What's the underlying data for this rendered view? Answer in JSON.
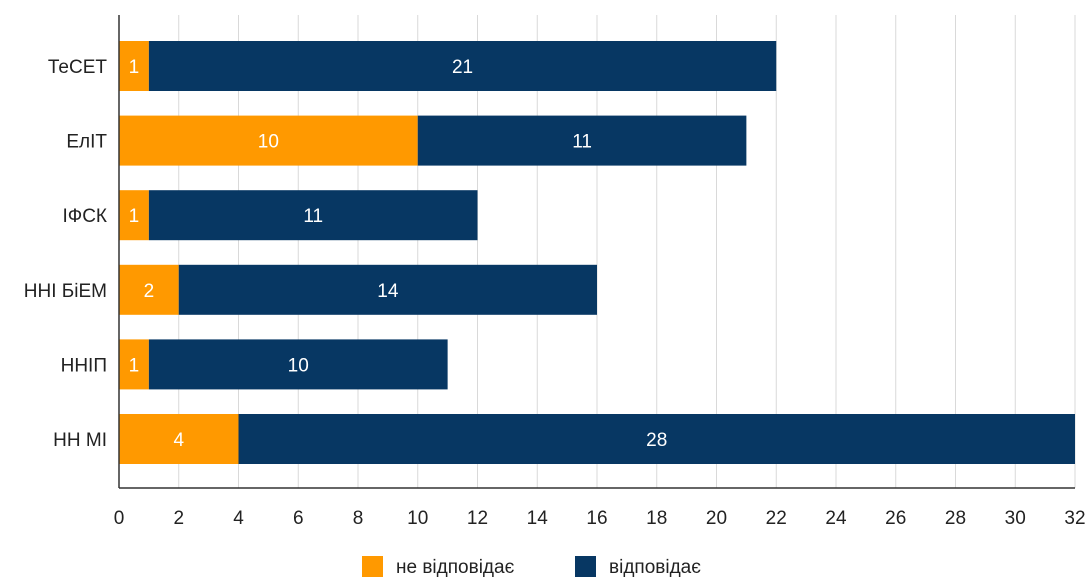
{
  "chart_data": {
    "type": "bar",
    "orientation": "horizontal",
    "stacked": true,
    "categories": [
      "ТеСЕТ",
      "ЕлІТ",
      "ІФСК",
      "ННІ БіЕМ",
      "ННІП",
      "НН МІ"
    ],
    "series": [
      {
        "name": "не відповідає",
        "color": "#ff9900",
        "values": [
          1,
          10,
          1,
          2,
          1,
          4
        ]
      },
      {
        "name": "відповідає",
        "color": "#073763",
        "values": [
          21,
          11,
          11,
          14,
          10,
          28
        ]
      }
    ],
    "title": "",
    "xlabel": "",
    "ylabel": "",
    "xlim": [
      0,
      32
    ],
    "xticks": [
      0,
      2,
      4,
      6,
      8,
      10,
      12,
      14,
      16,
      18,
      20,
      22,
      24,
      26,
      28,
      30,
      32
    ],
    "grid": true,
    "legend": "bottom-center"
  }
}
